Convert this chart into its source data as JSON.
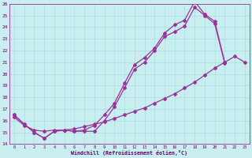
{
  "xlabel": "Windchill (Refroidissement éolien,°C)",
  "xlim": [
    -0.5,
    23.5
  ],
  "ylim": [
    14,
    26
  ],
  "xticks": [
    0,
    1,
    2,
    3,
    4,
    5,
    6,
    7,
    8,
    9,
    10,
    11,
    12,
    13,
    14,
    15,
    16,
    17,
    18,
    19,
    20,
    21,
    22,
    23
  ],
  "yticks": [
    14,
    15,
    16,
    17,
    18,
    19,
    20,
    21,
    22,
    23,
    24,
    25,
    26
  ],
  "bg_color": "#c8eef0",
  "grid_color": "#aadddd",
  "line_color": "#993399",
  "line1_x": [
    0,
    1,
    2,
    3,
    4,
    5,
    6,
    7,
    8,
    9,
    10,
    11,
    12,
    13,
    14,
    15,
    16,
    17,
    18,
    19,
    20,
    21
  ],
  "line1_y": [
    16.5,
    15.7,
    15.0,
    14.5,
    15.1,
    15.2,
    15.1,
    15.2,
    15.6,
    16.5,
    17.5,
    19.2,
    20.8,
    21.4,
    22.2,
    23.5,
    24.2,
    24.6,
    26.2,
    25.1,
    24.5,
    21.0
  ],
  "line2_x": [
    0,
    1,
    2,
    3,
    4,
    5,
    6,
    7,
    8,
    9,
    10,
    11,
    12,
    13,
    14,
    15,
    16,
    17,
    18,
    19,
    20,
    21
  ],
  "line2_y": [
    16.5,
    15.7,
    15.0,
    14.5,
    15.1,
    15.2,
    15.1,
    15.1,
    15.1,
    16.0,
    17.2,
    18.8,
    20.4,
    21.0,
    22.0,
    23.2,
    23.6,
    24.1,
    25.7,
    25.0,
    24.3,
    20.9
  ],
  "line3_x": [
    0,
    1,
    2,
    3,
    4,
    5,
    6,
    7,
    8,
    9,
    10,
    11,
    12,
    13,
    14,
    15,
    16,
    17,
    18,
    19,
    20,
    21,
    22,
    23
  ],
  "line3_y": [
    16.3,
    15.6,
    15.2,
    15.1,
    15.2,
    15.2,
    15.3,
    15.5,
    15.7,
    15.9,
    16.2,
    16.5,
    16.8,
    17.1,
    17.5,
    17.9,
    18.3,
    18.8,
    19.3,
    19.9,
    20.5,
    21.0,
    21.5,
    21.0
  ]
}
